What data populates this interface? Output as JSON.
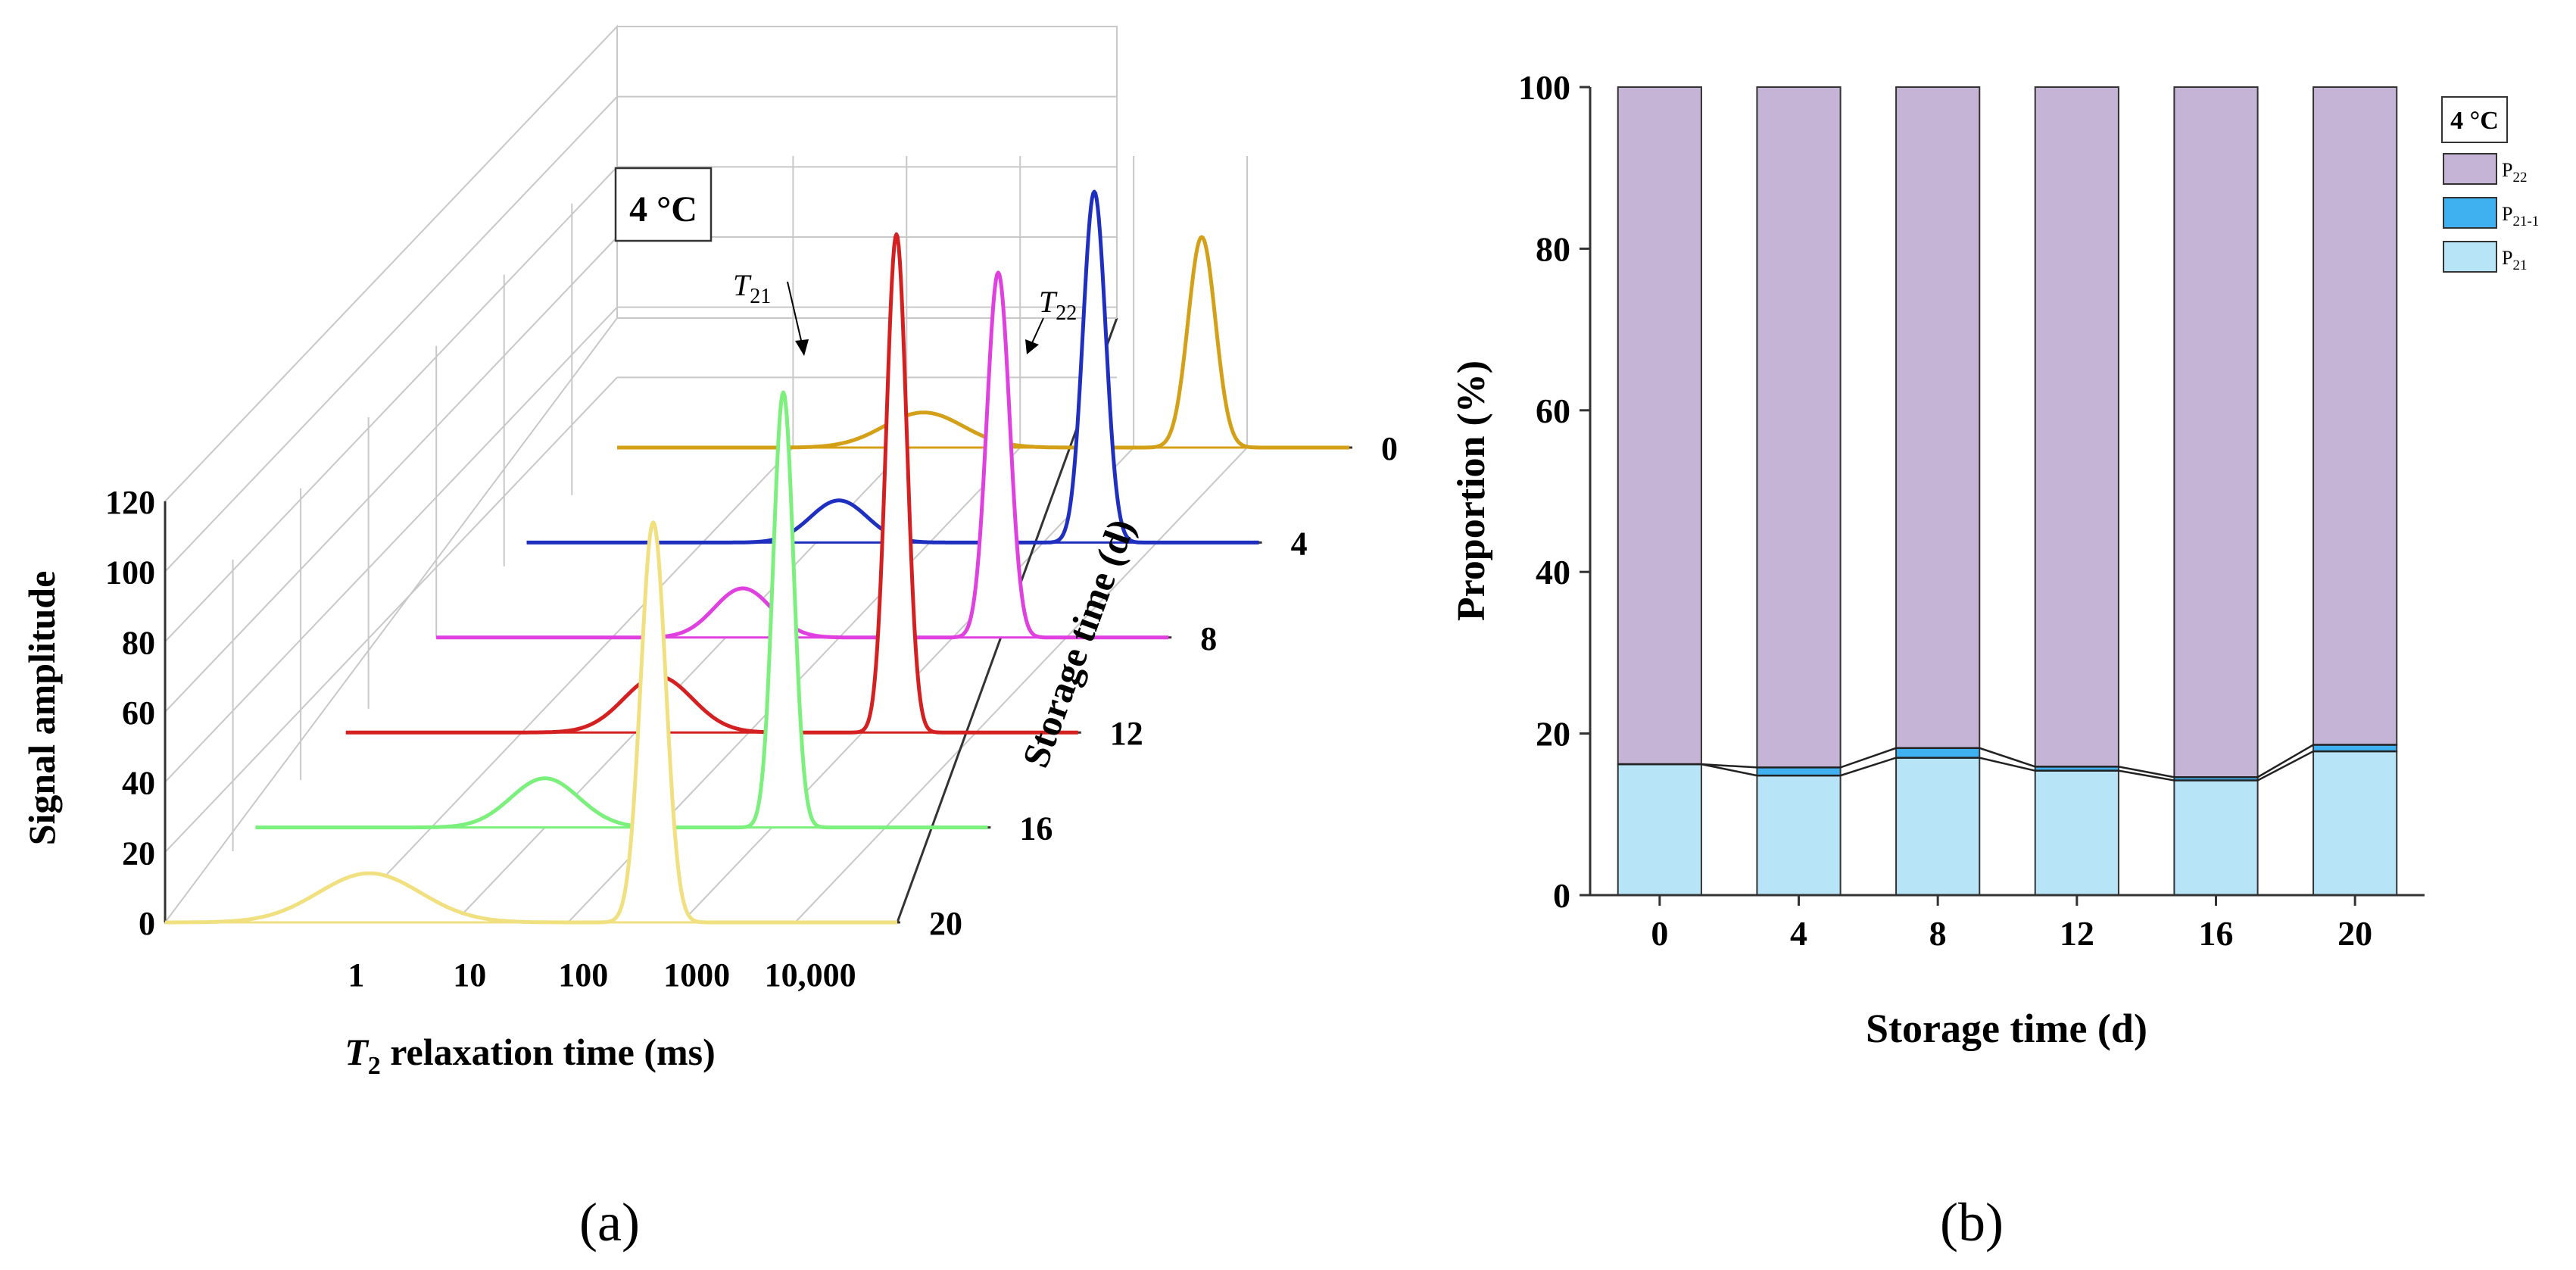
{
  "panels": {
    "a_label": "(a)",
    "b_label": "(b)"
  },
  "chart_data": [
    {
      "type": "line",
      "title": "4 °C",
      "xlabel_italic": "T",
      "xlabel_sub": "2",
      "xlabel_rest": " relaxation time (ms)",
      "ylabel": "Signal amplitude",
      "zlabel": "Storage time (d)",
      "x_ticks": [
        "1",
        "10",
        "100",
        "1000",
        "10,000"
      ],
      "y_ticks": [
        "0",
        "20",
        "40",
        "60",
        "80",
        "100",
        "120"
      ],
      "ylim": [
        0,
        120
      ],
      "z_ticks": [
        "0",
        "4",
        "8",
        "12",
        "16",
        "20"
      ],
      "annotations": {
        "t21_main": "T",
        "t21_sub": "21",
        "t22_main": "T",
        "t22_sub": "22"
      },
      "series": [
        {
          "name": "0",
          "storage_day": 0,
          "color": "#D4A017",
          "peaks": [
            {
              "log_t": 1.15,
              "amp": 10,
              "width": 0.35
            },
            {
              "log_t": 3.6,
              "amp": 60,
              "width": 0.12
            }
          ]
        },
        {
          "name": "4",
          "storage_day": 4,
          "color": "#1F2FBF",
          "peaks": [
            {
              "log_t": 1.2,
              "amp": 12,
              "width": 0.25
            },
            {
              "log_t": 3.45,
              "amp": 100,
              "width": 0.1
            }
          ]
        },
        {
          "name": "8",
          "storage_day": 8,
          "color": "#E040E0",
          "peaks": [
            {
              "log_t": 1.15,
              "amp": 14,
              "width": 0.25
            },
            {
              "log_t": 3.4,
              "amp": 104,
              "width": 0.1
            }
          ]
        },
        {
          "name": "12",
          "storage_day": 12,
          "color": "#D42020",
          "peaks": [
            {
              "log_t": 1.2,
              "amp": 16,
              "width": 0.3
            },
            {
              "log_t": 3.3,
              "amp": 142,
              "width": 0.09
            }
          ]
        },
        {
          "name": "16",
          "storage_day": 16,
          "color": "#7CF07C",
          "peaks": [
            {
              "log_t": 1.0,
              "amp": 14,
              "width": 0.3
            },
            {
              "log_t": 3.1,
              "amp": 124,
              "width": 0.09
            }
          ]
        },
        {
          "name": "20",
          "storage_day": 20,
          "color": "#F0E080",
          "peaks": [
            {
              "log_t": 0.25,
              "amp": 14,
              "width": 0.45
            },
            {
              "log_t": 2.75,
              "amp": 114,
              "width": 0.11
            }
          ]
        }
      ]
    },
    {
      "type": "bar",
      "stacked": true,
      "title": "4 °C",
      "xlabel": "Storage time (d)",
      "ylabel": "Proportion (%)",
      "ylim": [
        0,
        100
      ],
      "y_ticks": [
        "0",
        "20",
        "40",
        "60",
        "80",
        "100"
      ],
      "categories": [
        "0",
        "4",
        "8",
        "12",
        "16",
        "20"
      ],
      "series": [
        {
          "name": "P21",
          "main": "P",
          "sub": "21",
          "color": "#B8E4F8",
          "values": [
            16.2,
            14.8,
            17.0,
            15.4,
            14.2,
            17.8
          ]
        },
        {
          "name": "P21-1",
          "main": "P",
          "sub": "21-1",
          "color": "#3FB0F0",
          "values": [
            0.0,
            1.0,
            1.2,
            0.5,
            0.4,
            0.8
          ]
        },
        {
          "name": "P22",
          "main": "P",
          "sub": "22",
          "color": "#C5B4D6",
          "values": [
            83.8,
            84.2,
            81.8,
            84.1,
            85.4,
            81.4
          ]
        }
      ]
    }
  ]
}
